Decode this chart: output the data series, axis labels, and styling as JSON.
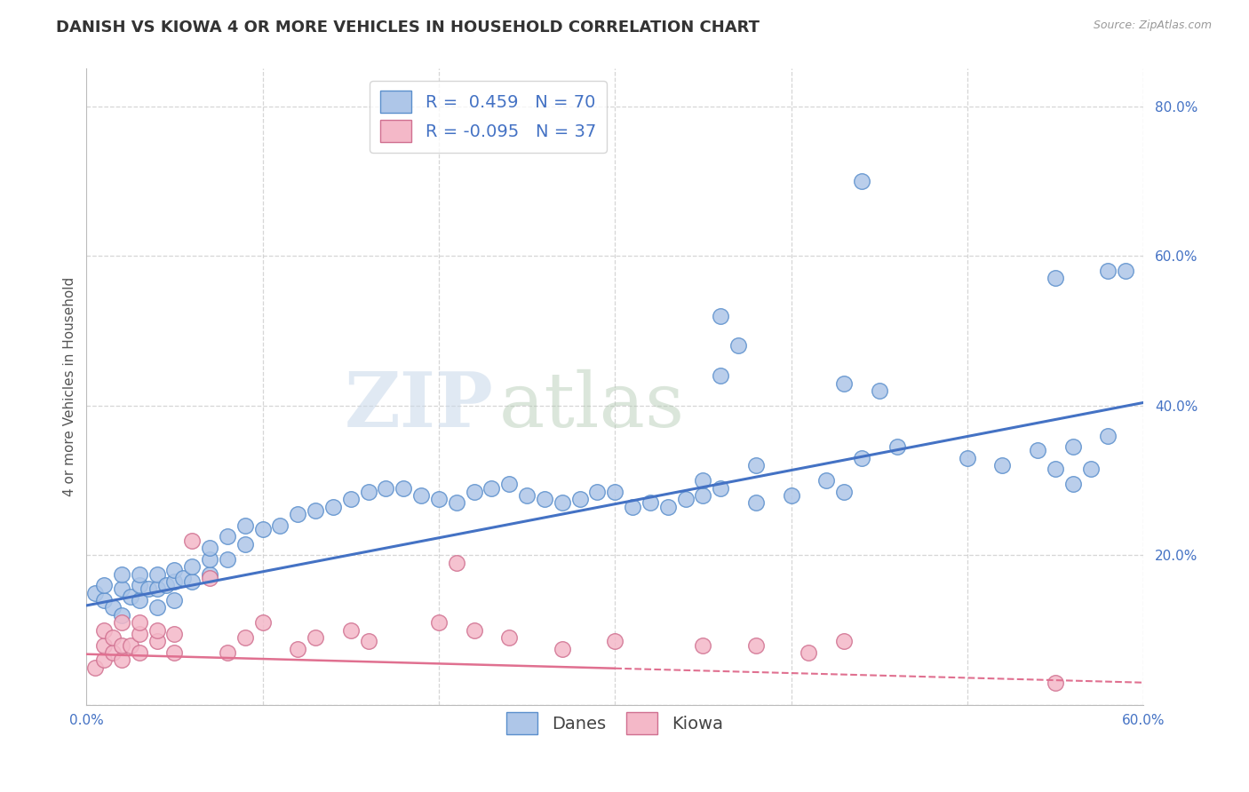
{
  "title": "DANISH VS KIOWA 4 OR MORE VEHICLES IN HOUSEHOLD CORRELATION CHART",
  "source": "Source: ZipAtlas.com",
  "ylabel_label": "4 or more Vehicles in Household",
  "xlim": [
    0.0,
    0.6
  ],
  "ylim": [
    0.0,
    0.85
  ],
  "x_ticks": [
    0.0,
    0.1,
    0.2,
    0.3,
    0.4,
    0.5,
    0.6
  ],
  "x_tick_labels": [
    "0.0%",
    "",
    "",
    "",
    "",
    "",
    "60.0%"
  ],
  "y_ticks": [
    0.0,
    0.2,
    0.4,
    0.6,
    0.8
  ],
  "y_tick_labels": [
    "",
    "20.0%",
    "40.0%",
    "60.0%",
    "80.0%"
  ],
  "danes_R": 0.459,
  "danes_N": 70,
  "kiowa_R": -0.095,
  "kiowa_N": 37,
  "danes_color": "#aec6e8",
  "danes_edge_color": "#5b8fcc",
  "danes_line_color": "#4472c4",
  "kiowa_color": "#f4b8c8",
  "kiowa_edge_color": "#d07090",
  "kiowa_line_color": "#e07090",
  "background_color": "#ffffff",
  "grid_color": "#cccccc",
  "danes_x": [
    0.005,
    0.01,
    0.01,
    0.015,
    0.02,
    0.02,
    0.02,
    0.025,
    0.03,
    0.03,
    0.03,
    0.035,
    0.04,
    0.04,
    0.04,
    0.045,
    0.05,
    0.05,
    0.05,
    0.055,
    0.06,
    0.06,
    0.07,
    0.07,
    0.07,
    0.08,
    0.08,
    0.09,
    0.09,
    0.1,
    0.11,
    0.12,
    0.13,
    0.14,
    0.15,
    0.16,
    0.17,
    0.18,
    0.19,
    0.2,
    0.21,
    0.22,
    0.23,
    0.24,
    0.25,
    0.26,
    0.27,
    0.28,
    0.29,
    0.3,
    0.31,
    0.32,
    0.33,
    0.34,
    0.35,
    0.36,
    0.38,
    0.4,
    0.42,
    0.43,
    0.44,
    0.46,
    0.5,
    0.52,
    0.54,
    0.55,
    0.56,
    0.57,
    0.58,
    0.59
  ],
  "danes_y": [
    0.15,
    0.14,
    0.16,
    0.13,
    0.12,
    0.155,
    0.175,
    0.145,
    0.14,
    0.16,
    0.175,
    0.155,
    0.13,
    0.155,
    0.175,
    0.16,
    0.14,
    0.165,
    0.18,
    0.17,
    0.165,
    0.185,
    0.175,
    0.195,
    0.21,
    0.195,
    0.225,
    0.215,
    0.24,
    0.235,
    0.24,
    0.255,
    0.26,
    0.265,
    0.275,
    0.285,
    0.29,
    0.29,
    0.28,
    0.275,
    0.27,
    0.285,
    0.29,
    0.295,
    0.28,
    0.275,
    0.27,
    0.275,
    0.285,
    0.285,
    0.265,
    0.27,
    0.265,
    0.275,
    0.28,
    0.29,
    0.27,
    0.28,
    0.3,
    0.285,
    0.33,
    0.345,
    0.33,
    0.32,
    0.34,
    0.315,
    0.295,
    0.315,
    0.36,
    0.58
  ],
  "danes_y_outliers": [
    0.7,
    0.58,
    0.57,
    0.52,
    0.48,
    0.44,
    0.43,
    0.42,
    0.32,
    0.3,
    0.345
  ],
  "danes_x_outliers": [
    0.44,
    0.58,
    0.55,
    0.36,
    0.37,
    0.36,
    0.43,
    0.45,
    0.38,
    0.35,
    0.56
  ],
  "kiowa_x": [
    0.005,
    0.01,
    0.01,
    0.01,
    0.015,
    0.015,
    0.02,
    0.02,
    0.02,
    0.025,
    0.03,
    0.03,
    0.03,
    0.04,
    0.04,
    0.05,
    0.05,
    0.06,
    0.07,
    0.08,
    0.09,
    0.1,
    0.12,
    0.13,
    0.15,
    0.16,
    0.2,
    0.21,
    0.22,
    0.24,
    0.27,
    0.3,
    0.35,
    0.38,
    0.41,
    0.43,
    0.55
  ],
  "kiowa_y": [
    0.05,
    0.06,
    0.08,
    0.1,
    0.07,
    0.09,
    0.06,
    0.08,
    0.11,
    0.08,
    0.07,
    0.095,
    0.11,
    0.085,
    0.1,
    0.07,
    0.095,
    0.22,
    0.17,
    0.07,
    0.09,
    0.11,
    0.075,
    0.09,
    0.1,
    0.085,
    0.11,
    0.19,
    0.1,
    0.09,
    0.075,
    0.085,
    0.08,
    0.08,
    0.07,
    0.085,
    0.03
  ],
  "watermark_zip": "ZIP",
  "watermark_atlas": "atlas",
  "title_fontsize": 13,
  "axis_label_fontsize": 11,
  "tick_fontsize": 11,
  "legend_fontsize": 14,
  "danes_line_start_y": 0.133,
  "danes_line_end_y": 0.404,
  "kiowa_line_start_y": 0.068,
  "kiowa_line_end_y": 0.03
}
